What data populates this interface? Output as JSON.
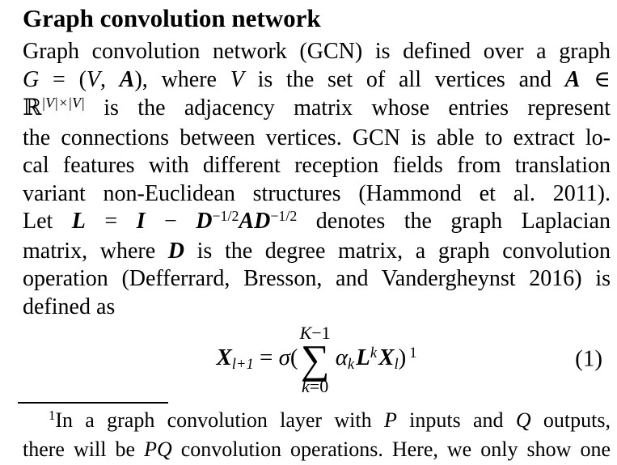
{
  "heading": "Graph convolution network",
  "body": {
    "line1": "Graph convolution network (GCN) is defined over a graph",
    "line2": {
      "g": "G",
      "s1": " = (",
      "v1": "V",
      "s2": ", ",
      "a1": "A",
      "s3": "), where ",
      "v2": "V",
      "s4": " is the set of all vertices and ",
      "a2": "A",
      "s5": " ∈"
    },
    "line3": {
      "r": "ℝ",
      "sup": "|V|×|V|",
      "s1": " is the adjacency matrix whose entries represent"
    },
    "line4": "the connections between vertices. GCN is able to extract lo-",
    "line5": "cal features with different reception fields from translation",
    "line6": "variant non-Euclidean structures (Hammond et al. 2011).",
    "line7": {
      "s1": "Let ",
      "l": "L",
      "s2": " = ",
      "i": "I",
      "s3": " − ",
      "d1": "D",
      "e1": "−1/2",
      "a": "A",
      "d2": "D",
      "e2": "−1/2",
      "s4": " denotes the graph Laplacian"
    },
    "line8": {
      "s1": "matrix, where ",
      "d": "D",
      "s2": " is the degree matrix, a graph convolution"
    },
    "line9": "operation (Defferrard, Bresson, and Vandergheynst 2016) is",
    "line10": "defined as"
  },
  "equation": {
    "x1": "X",
    "x1sub": "l+1",
    "eq": " = ",
    "sigma": "σ",
    "open": "(",
    "sum_top_k": "K",
    "sum_top_rest": "−1",
    "sum_symbol": "∑",
    "sum_bot_k": "k",
    "sum_bot_rest": "=0",
    "alpha": "α",
    "alpha_sub": "k",
    "laplacian": "L",
    "laplacian_sup": "k",
    "x2": "X",
    "x2sub": "l",
    "close": ")",
    "footnote_mark": "1",
    "number": "(1)"
  },
  "footnote": {
    "mark": "1",
    "line1": {
      "s1": "In a graph convolution layer with ",
      "p": "P",
      "s2": " inputs and ",
      "q": "Q",
      "s3": " outputs,"
    },
    "line2": {
      "s1": "there will be ",
      "pq": "PQ",
      "s2": " convolution operations. Here, we only show one"
    }
  }
}
